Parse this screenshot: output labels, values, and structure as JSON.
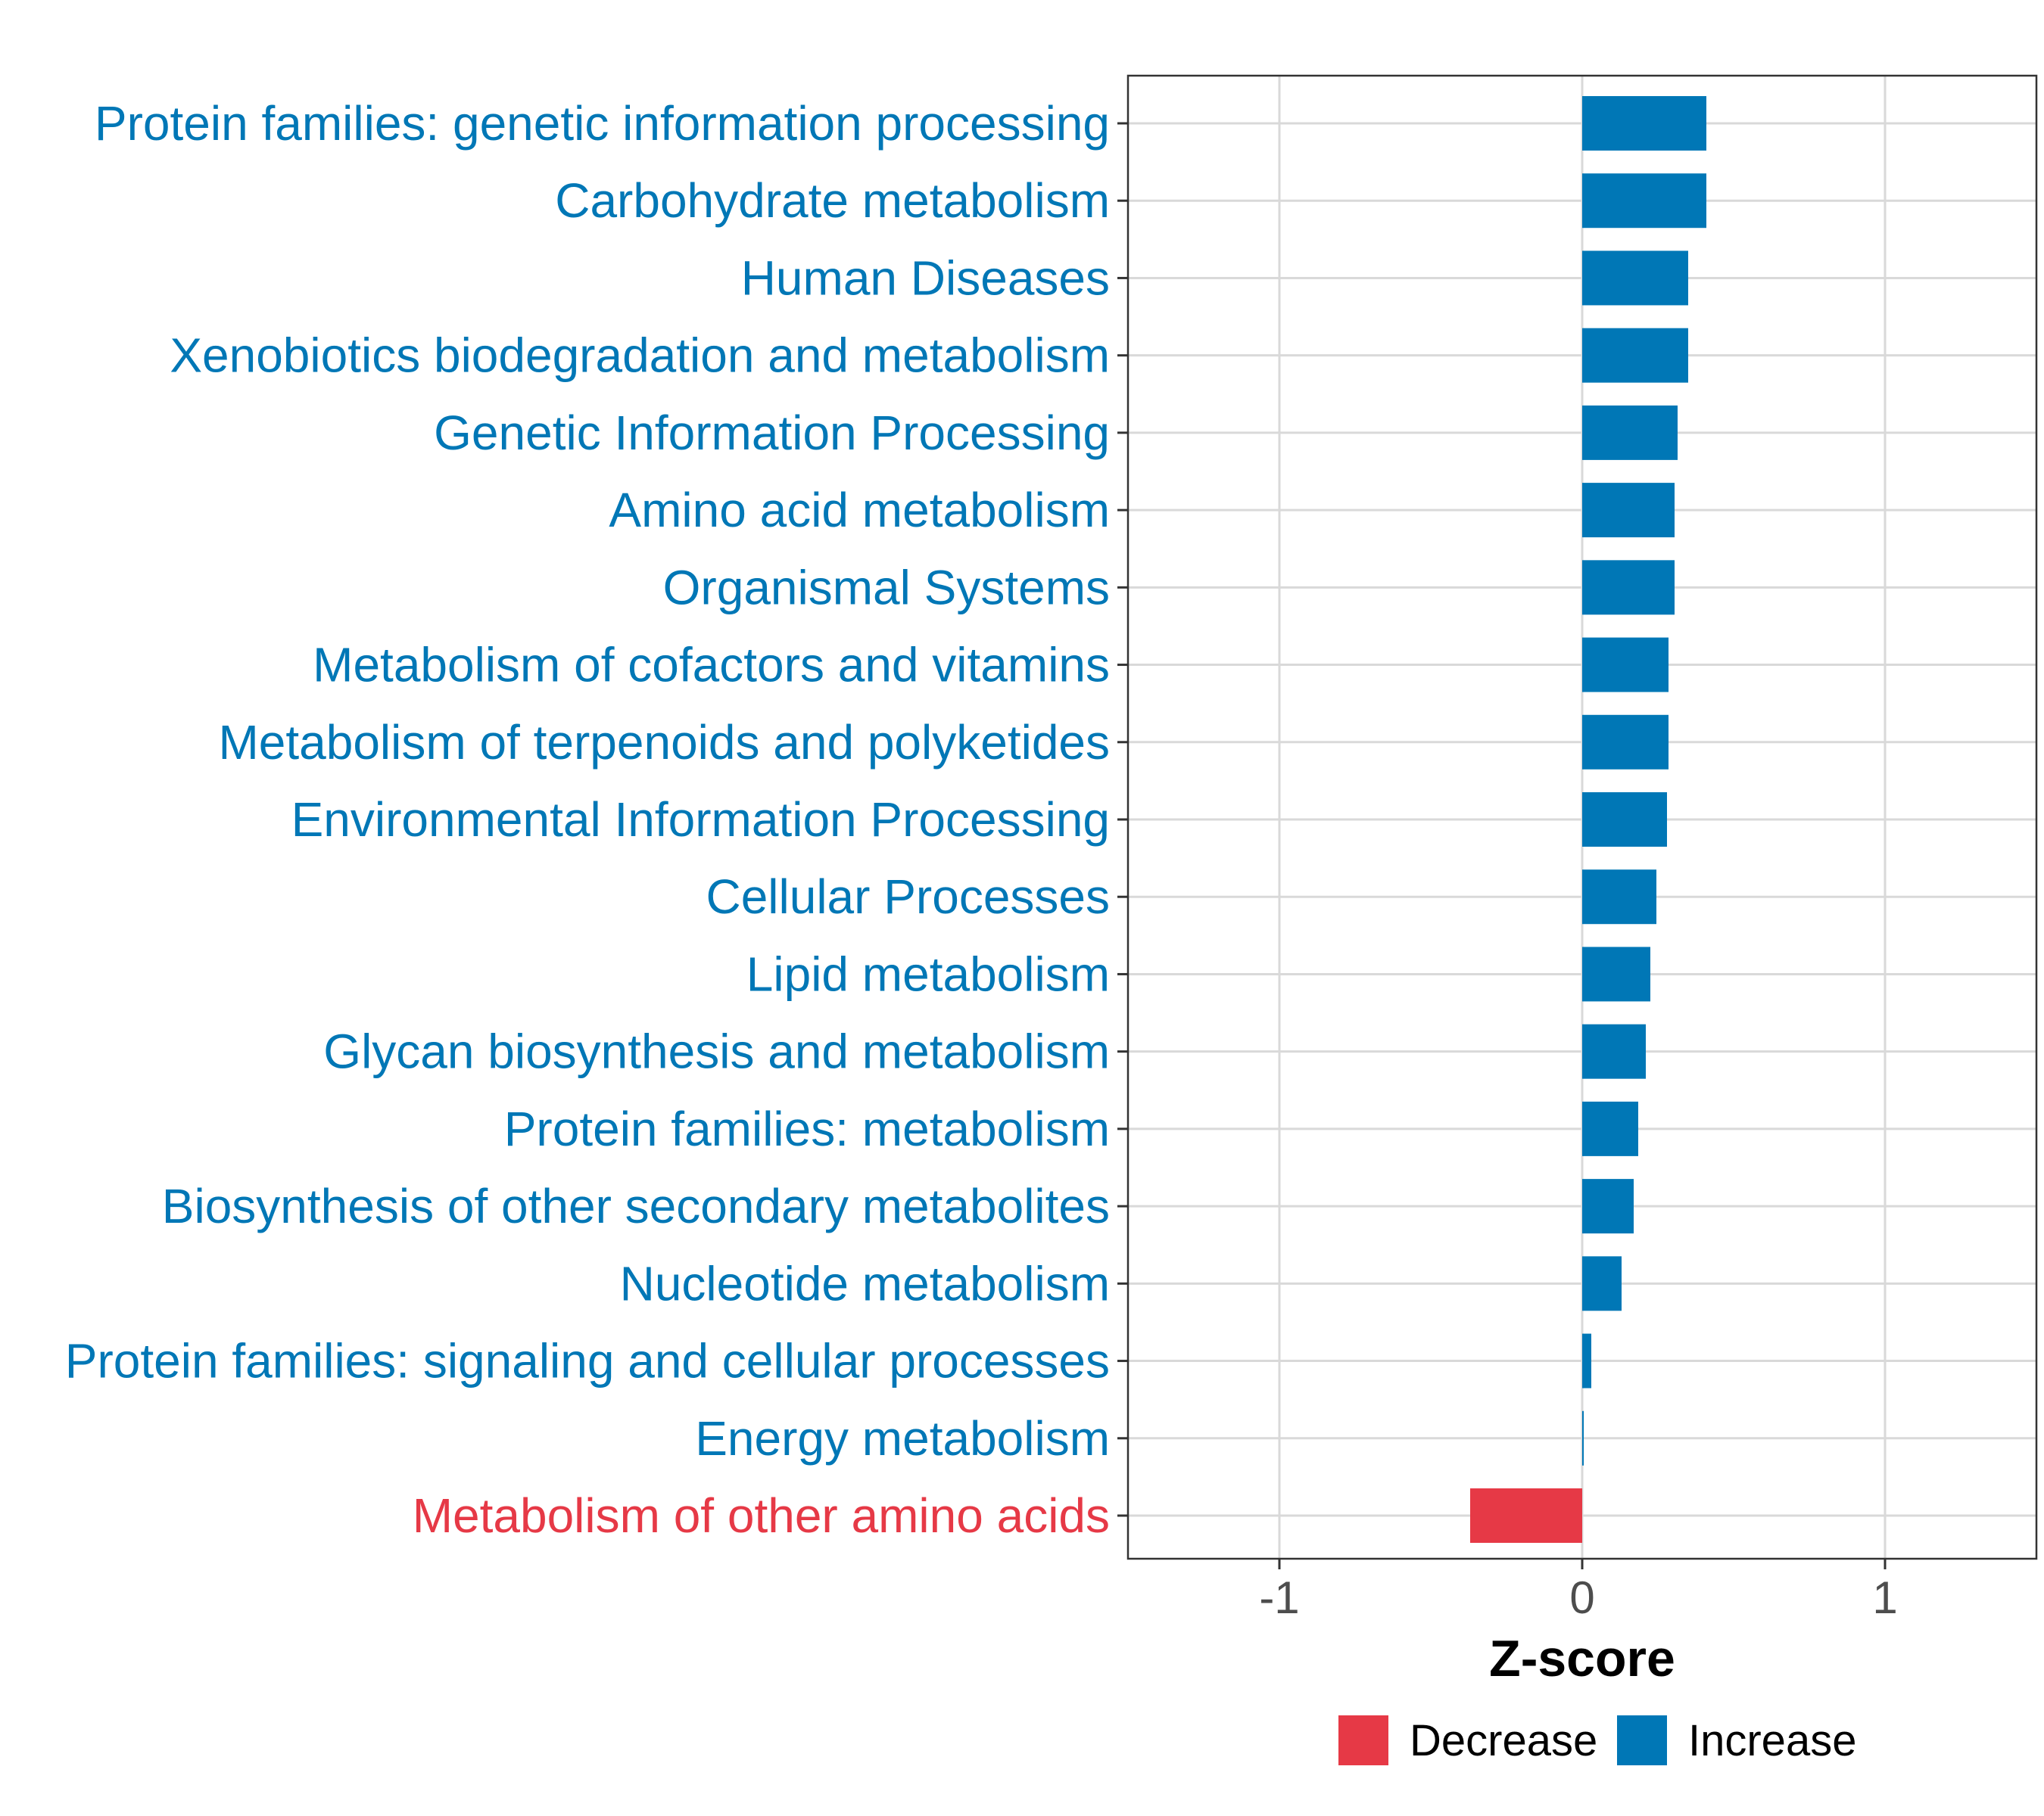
{
  "chart_data": {
    "type": "bar",
    "orientation": "horizontal",
    "xlabel": "Z-score",
    "xlim": [
      -1.5,
      1.5
    ],
    "xticks": [
      -1,
      0,
      1
    ],
    "xtick_labels": [
      "-1",
      "0",
      "1"
    ],
    "grid": true,
    "categories": [
      "Protein families: genetic information processing",
      "Carbohydrate metabolism",
      "Human Diseases",
      "Xenobiotics biodegradation and metabolism",
      "Genetic Information Processing",
      "Amino acid metabolism",
      "Organismal Systems",
      "Metabolism of cofactors and vitamins",
      "Metabolism of terpenoids and polyketides",
      "Environmental Information Processing",
      "Cellular Processes",
      "Lipid metabolism",
      "Glycan biosynthesis and metabolism",
      "Protein families: metabolism",
      "Biosynthesis of other secondary metabolites",
      "Nucleotide metabolism",
      "Protein families: signaling and cellular processes",
      "Energy metabolism",
      "Metabolism of other amino acids"
    ],
    "values": [
      0.41,
      0.41,
      0.35,
      0.35,
      0.315,
      0.305,
      0.305,
      0.285,
      0.285,
      0.28,
      0.245,
      0.225,
      0.21,
      0.185,
      0.17,
      0.13,
      0.03,
      0.005,
      -0.37
    ],
    "groups": [
      "Increase",
      "Increase",
      "Increase",
      "Increase",
      "Increase",
      "Increase",
      "Increase",
      "Increase",
      "Increase",
      "Increase",
      "Increase",
      "Increase",
      "Increase",
      "Increase",
      "Increase",
      "Increase",
      "Increase",
      "Increase",
      "Decrease"
    ],
    "legend": {
      "position": "bottom",
      "entries": [
        {
          "label": "Decrease",
          "color": "#e63946"
        },
        {
          "label": "Increase",
          "color": "#0077b6"
        }
      ]
    }
  }
}
